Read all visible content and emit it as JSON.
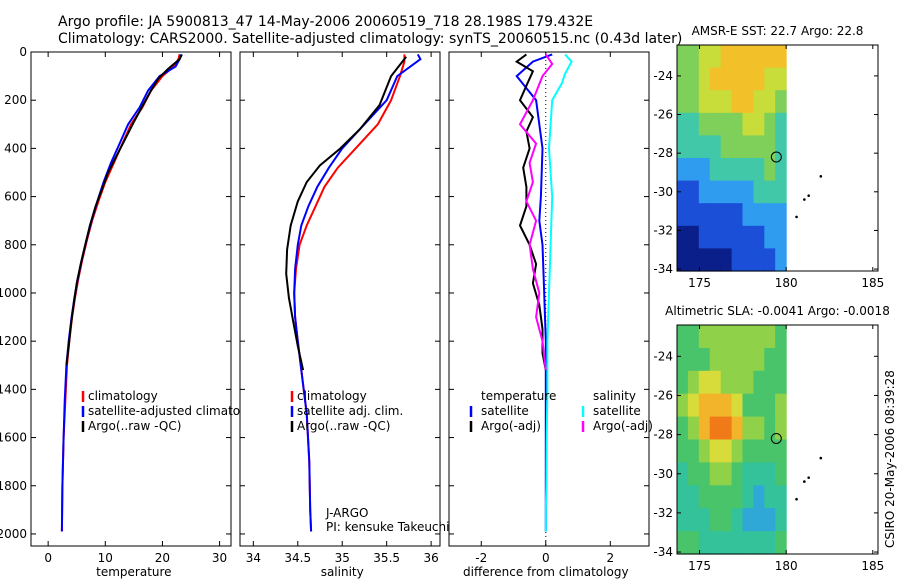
{
  "title": {
    "line1": "Argo profile: JA 5900813_47 14-May-2006 20060519_718 28.198S 179.432E",
    "line2": "Climatology: CARS2000. Satellite-adjusted climatology: synTS_20060515.nc (0.43d later)"
  },
  "side_label": "CSIRO 20-May-2006 08:39:28",
  "colors": {
    "climatology": "#ff0000",
    "satellite": "#0000ff",
    "argo": "#000000",
    "salinity_satellite": "#00ffff",
    "salinity_argo": "#ff00ff"
  },
  "chart_data": [
    {
      "id": "temperature",
      "type": "line",
      "xlabel": "temperature",
      "xlim": [
        -3,
        32
      ],
      "xticks": [
        0,
        10,
        20,
        30
      ],
      "ylim": [
        2050,
        0
      ],
      "yticks": [
        0,
        200,
        400,
        600,
        800,
        1000,
        1200,
        1400,
        1600,
        1800,
        2000
      ],
      "legend": [
        {
          "label": "climatology",
          "color": "#ff0000"
        },
        {
          "label": "satellite-adjusted climatology",
          "color": "#0000ff"
        },
        {
          "label": "Argo(..raw -QC)",
          "color": "#000000"
        }
      ],
      "series": [
        {
          "name": "climatology",
          "color": "#ff0000",
          "x": [
            23,
            22.8,
            22,
            20,
            18,
            16.5,
            14.5,
            13,
            11.5,
            10,
            8.8,
            7.7,
            6.8,
            6,
            5.3,
            4.7,
            4.2,
            3.7,
            3.3,
            3,
            2.7,
            2.5,
            2.4
          ],
          "y": [
            10,
            30,
            60,
            100,
            160,
            230,
            300,
            380,
            460,
            540,
            620,
            700,
            780,
            860,
            940,
            1020,
            1100,
            1200,
            1300,
            1450,
            1600,
            1800,
            1990
          ]
        },
        {
          "name": "satellite-adjusted climatology",
          "color": "#0000ff",
          "x": [
            23.2,
            23,
            22.3,
            19.5,
            17.5,
            16,
            14,
            12.5,
            11,
            9.7,
            8.6,
            7.6,
            6.7,
            5.9,
            5.2,
            4.6,
            4.1,
            3.6,
            3.2,
            2.9,
            2.7,
            2.5,
            2.4
          ],
          "y": [
            10,
            30,
            60,
            100,
            160,
            230,
            300,
            380,
            460,
            540,
            620,
            700,
            780,
            860,
            940,
            1020,
            1100,
            1200,
            1300,
            1450,
            1600,
            1800,
            1990
          ]
        },
        {
          "name": "Argo(..raw -QC)",
          "color": "#000000",
          "x": [
            23.4,
            23,
            21,
            19.3,
            18,
            16.6,
            15,
            13.5,
            12,
            10.5,
            9.4,
            8.3,
            7.3,
            6.5,
            5.7,
            5,
            4.5,
            4,
            3.6,
            3.2
          ],
          "y": [
            10,
            30,
            70,
            110,
            160,
            220,
            290,
            360,
            430,
            500,
            570,
            640,
            720,
            800,
            880,
            960,
            1040,
            1130,
            1220,
            1300
          ]
        }
      ]
    },
    {
      "id": "salinity",
      "type": "line",
      "xlabel": "salinity",
      "xlim": [
        33.85,
        36.1
      ],
      "xticks": [
        34,
        34.5,
        35,
        35.5,
        36
      ],
      "ylim": [
        2050,
        0
      ],
      "annotation": [
        "J-ARGO",
        "PI: kensuke Takeuchi"
      ],
      "legend": [
        {
          "label": "climatology",
          "color": "#ff0000"
        },
        {
          "label": "satellite adj. clim.",
          "color": "#0000ff"
        },
        {
          "label": "Argo(..raw -QC)",
          "color": "#000000"
        }
      ],
      "series": [
        {
          "name": "climatology",
          "color": "#ff0000",
          "x": [
            35.7,
            35.7,
            35.65,
            35.55,
            35.4,
            35.15,
            34.95,
            34.8,
            34.7,
            34.6,
            34.52,
            34.48,
            34.46,
            34.47,
            34.5,
            34.55,
            34.6,
            34.63,
            34.64,
            34.65
          ],
          "y": [
            10,
            40,
            100,
            200,
            300,
            400,
            480,
            560,
            640,
            720,
            800,
            900,
            1000,
            1100,
            1200,
            1350,
            1500,
            1700,
            1900,
            1990
          ]
        },
        {
          "name": "satellite adj. clim.",
          "color": "#0000ff",
          "x": [
            35.85,
            35.88,
            35.62,
            35.5,
            35.25,
            35.0,
            34.85,
            34.72,
            34.62,
            34.54,
            34.5,
            34.47,
            34.46,
            34.47,
            34.5,
            34.55,
            34.6,
            34.63,
            34.64,
            34.65
          ],
          "y": [
            10,
            30,
            100,
            200,
            300,
            400,
            480,
            560,
            640,
            720,
            800,
            900,
            1000,
            1100,
            1200,
            1350,
            1500,
            1700,
            1900,
            1990
          ]
        },
        {
          "name": "Argo(..raw -QC)",
          "color": "#000000",
          "x": [
            35.72,
            35.55,
            35.42,
            35.2,
            34.98,
            34.75,
            34.6,
            34.5,
            34.42,
            34.38,
            34.37,
            34.4,
            34.45,
            34.5,
            34.56
          ],
          "y": [
            20,
            100,
            220,
            320,
            400,
            470,
            540,
            620,
            720,
            820,
            920,
            1020,
            1120,
            1220,
            1320
          ]
        }
      ]
    },
    {
      "id": "difference",
      "type": "line",
      "xlabel": "difference from climatology",
      "xlim": [
        -3,
        3.2
      ],
      "xticks": [
        -2,
        0,
        2
      ],
      "ylim": [
        2050,
        0
      ],
      "zero_line": 0,
      "legend_columns": [
        {
          "heading": "temperature",
          "items": [
            {
              "label": "satellite",
              "color": "#0000ff"
            },
            {
              "label": "Argo(-adj)",
              "color": "#000000"
            }
          ]
        },
        {
          "heading": "salinity",
          "items": [
            {
              "label": "satellite",
              "color": "#00ffff"
            },
            {
              "label": "Argo(-adj)",
              "color": "#ff00ff"
            }
          ]
        }
      ],
      "series": [
        {
          "name": "temperature satellite",
          "color": "#0000ff",
          "x": [
            0.2,
            -0.4,
            -0.9,
            -0.3,
            -0.1,
            -0.15,
            -0.2,
            -0.1,
            -0.05,
            0,
            0,
            0,
            0,
            0,
            0
          ],
          "y": [
            10,
            40,
            100,
            200,
            400,
            600,
            700,
            800,
            1000,
            1200,
            1400,
            1600,
            1800,
            1900,
            1990
          ]
        },
        {
          "name": "temperature Argo(-adj)",
          "color": "#000000",
          "x": [
            -0.6,
            -0.9,
            -0.4,
            -0.6,
            -0.8,
            -0.4,
            -0.6,
            -0.5,
            -0.7,
            -0.6,
            -0.6,
            -0.8,
            -0.5,
            -0.3,
            -0.4,
            -0.2,
            -0.1,
            -0.1,
            0
          ],
          "y": [
            10,
            40,
            80,
            140,
            200,
            270,
            330,
            400,
            480,
            560,
            640,
            720,
            800,
            880,
            960,
            1050,
            1150,
            1250,
            1320
          ]
        },
        {
          "name": "salinity satellite",
          "color": "#00ffff",
          "x": [
            0.6,
            0.8,
            0.6,
            0.5,
            0.2,
            0.1,
            0.2,
            0.15,
            0.1,
            0.05,
            0.05,
            0.03,
            0.02,
            0,
            0
          ],
          "y": [
            10,
            40,
            90,
            130,
            200,
            400,
            600,
            800,
            1000,
            1200,
            1400,
            1600,
            1800,
            1900,
            1990
          ]
        },
        {
          "name": "salinity Argo(-adj)",
          "color": "#ff00ff",
          "x": [
            0,
            0.2,
            -0.1,
            -0.4,
            -0.8,
            -0.3,
            -0.5,
            -0.4,
            -0.6,
            -0.3,
            -0.5,
            -0.4,
            -0.2,
            -0.3,
            -0.1,
            0
          ],
          "y": [
            10,
            50,
            100,
            200,
            300,
            380,
            460,
            540,
            620,
            700,
            800,
            900,
            1000,
            1100,
            1200,
            1320
          ]
        }
      ]
    },
    {
      "id": "sst_map",
      "type": "heatmap",
      "title": "AMSR-E SST: 22.7 Argo: 22.8",
      "xlim": [
        173.7,
        185.3
      ],
      "xticks": [
        175,
        180,
        185
      ],
      "ylim": [
        -34.1,
        -22.4
      ],
      "yticks": [
        -24,
        -26,
        -28,
        -30,
        -32,
        -34
      ],
      "data_lon_max": 180,
      "marker": {
        "lon": 179.432,
        "lat": -28.198
      },
      "palette": [
        "#0b1f8a",
        "#1b4fd8",
        "#2f9cf0",
        "#40c8a8",
        "#7fd05a",
        "#c8dc3a",
        "#f2c12a",
        "#f08b18"
      ],
      "grid_rows": [
        "4455666666",
        "4456666655",
        "4455566554",
        "3344445543",
        "3333444443",
        "2223333343",
        "1122222333",
        "1111112222",
        "0011111122",
        "0000011112"
      ]
    },
    {
      "id": "sla_map",
      "type": "heatmap",
      "title": "Altimetric SLA: -0.0041 Argo: -0.0018",
      "xlim": [
        173.7,
        185.3
      ],
      "xticks": [
        175,
        180,
        185
      ],
      "ylim": [
        -34.1,
        -22.4
      ],
      "yticks": [
        -24,
        -26,
        -28,
        -30,
        -32,
        -34
      ],
      "data_lon_max": 180,
      "marker": {
        "lon": 179.432,
        "lat": -28.198
      },
      "palette": [
        "#1b6fd8",
        "#2fa8d8",
        "#34c29a",
        "#49c46a",
        "#8fd24a",
        "#d8dc3a",
        "#f2b42a",
        "#f07a18"
      ],
      "grid_rows": [
        "3344444443",
        "3334444433",
        "3455444333",
        "4566653334",
        "3467764434",
        "3345543333",
        "2334432223",
        "2233332122",
        "2223321112",
        "3322222223"
      ]
    }
  ]
}
